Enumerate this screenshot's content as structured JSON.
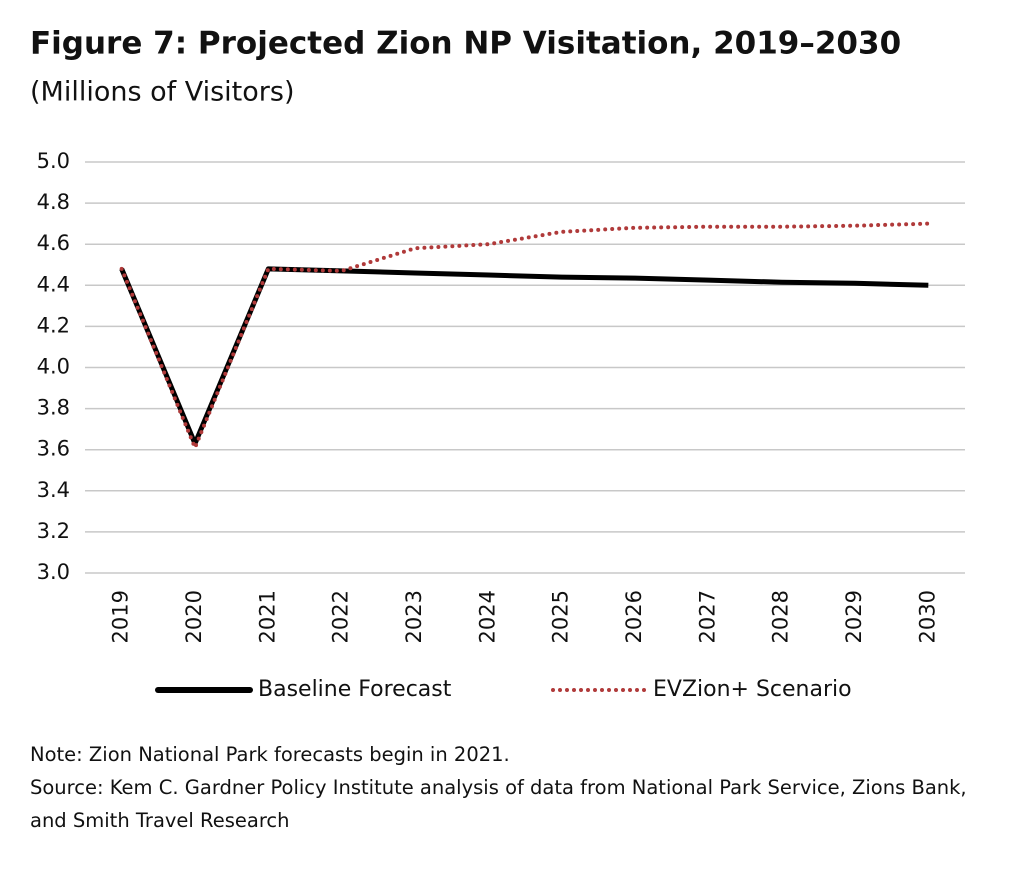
{
  "chart_data": {
    "type": "line",
    "title": "Figure 7: Projected Zion NP Visitation, 2019–2030",
    "subtitle": "(Millions of Visitors)",
    "categories": [
      "2019",
      "2020",
      "2021",
      "2022",
      "2023",
      "2024",
      "2025",
      "2026",
      "2027",
      "2028",
      "2029",
      "2030"
    ],
    "series": [
      {
        "name": "Baseline Forecast",
        "color": "#000000",
        "dash": false,
        "values": [
          4.48,
          3.63,
          4.48,
          4.47,
          4.46,
          4.45,
          4.44,
          4.435,
          4.425,
          4.415,
          4.41,
          4.4
        ]
      },
      {
        "name": "EVZion+ Scenario",
        "color": "#b03a3a",
        "dash": true,
        "values": [
          4.48,
          3.61,
          4.48,
          4.47,
          4.58,
          4.6,
          4.66,
          4.68,
          4.685,
          4.685,
          4.69,
          4.7
        ]
      }
    ],
    "ylim": [
      3.0,
      5.0
    ],
    "yticks": [
      {
        "value": 3.0,
        "label": "3.0"
      },
      3.2,
      3.4,
      3.6,
      3.8,
      {
        "value": 4.0,
        "label": "4.0"
      },
      4.2,
      4.4,
      4.6,
      4.8,
      {
        "value": 5.0,
        "label": "5.0"
      }
    ],
    "grid": true,
    "legend": "bottom",
    "note": "Note: Zion National Park forecasts begin in 2021.",
    "source": "Source: Kem C. Gardner Policy Institute analysis of data from National Park Service, Zions Bank, and Smith Travel Research"
  }
}
